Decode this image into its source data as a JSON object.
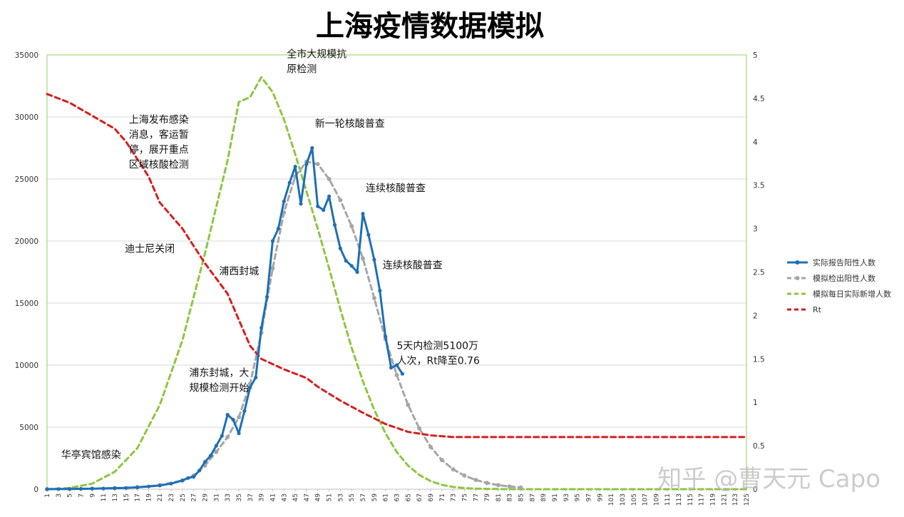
{
  "chart_data": {
    "type": "line",
    "title": "上海疫情数据模拟",
    "x": {
      "min": 1,
      "max": 125,
      "tick_step": 2
    },
    "y_left": {
      "min": 0,
      "max": 35000,
      "ticks": [
        "0",
        "5000",
        "10000",
        "15000",
        "20000",
        "25000",
        "30000",
        "35000"
      ]
    },
    "y_right": {
      "min": 0,
      "max": 5,
      "ticks": [
        "0",
        "0.5",
        "1",
        "1.5",
        "2",
        "2.5",
        "3",
        "3.5",
        "4",
        "4.5",
        "5"
      ]
    },
    "grid": "horizontal",
    "legend_position": "right",
    "series": [
      {
        "name": "实际报告阳性人数",
        "axis": "left",
        "color": "#1f6fb5",
        "style": "solid-markers",
        "points": [
          [
            1,
            0
          ],
          [
            3,
            10
          ],
          [
            5,
            20
          ],
          [
            7,
            30
          ],
          [
            9,
            40
          ],
          [
            11,
            60
          ],
          [
            13,
            80
          ],
          [
            15,
            100
          ],
          [
            17,
            150
          ],
          [
            19,
            220
          ],
          [
            21,
            300
          ],
          [
            23,
            450
          ],
          [
            25,
            700
          ],
          [
            26,
            900
          ],
          [
            27,
            1000
          ],
          [
            28,
            1500
          ],
          [
            29,
            2200
          ],
          [
            30,
            2700
          ],
          [
            31,
            3500
          ],
          [
            32,
            4300
          ],
          [
            33,
            6000
          ],
          [
            34,
            5600
          ],
          [
            35,
            4500
          ],
          [
            36,
            6300
          ],
          [
            37,
            8200
          ],
          [
            38,
            9000
          ],
          [
            39,
            13000
          ],
          [
            40,
            15500
          ],
          [
            41,
            20000
          ],
          [
            42,
            21000
          ],
          [
            43,
            23200
          ],
          [
            44,
            24700
          ],
          [
            45,
            26000
          ],
          [
            46,
            23000
          ],
          [
            47,
            26200
          ],
          [
            48,
            27500
          ],
          [
            49,
            22800
          ],
          [
            50,
            22500
          ],
          [
            51,
            23600
          ],
          [
            52,
            21300
          ],
          [
            53,
            19400
          ],
          [
            54,
            18400
          ],
          [
            55,
            18000
          ],
          [
            56,
            17500
          ],
          [
            57,
            22200
          ],
          [
            58,
            20500
          ],
          [
            59,
            18500
          ],
          [
            60,
            16000
          ],
          [
            61,
            12300
          ],
          [
            62,
            9800
          ],
          [
            63,
            10000
          ],
          [
            64,
            9300
          ]
        ]
      },
      {
        "name": "模拟检出阳性人数",
        "axis": "left",
        "color": "#a6a6a6",
        "style": "dashed-markers",
        "points": [
          [
            1,
            0
          ],
          [
            5,
            20
          ],
          [
            9,
            50
          ],
          [
            13,
            90
          ],
          [
            17,
            160
          ],
          [
            21,
            330
          ],
          [
            25,
            700
          ],
          [
            27,
            1100
          ],
          [
            29,
            1900
          ],
          [
            31,
            3000
          ],
          [
            33,
            4200
          ],
          [
            35,
            5800
          ],
          [
            37,
            8500
          ],
          [
            39,
            12600
          ],
          [
            41,
            17800
          ],
          [
            43,
            22300
          ],
          [
            45,
            25200
          ],
          [
            47,
            26400
          ],
          [
            49,
            26200
          ],
          [
            51,
            25000
          ],
          [
            53,
            23300
          ],
          [
            55,
            21200
          ],
          [
            57,
            18600
          ],
          [
            59,
            15400
          ],
          [
            61,
            12100
          ],
          [
            63,
            9200
          ],
          [
            65,
            6800
          ],
          [
            67,
            4900
          ],
          [
            69,
            3400
          ],
          [
            71,
            2350
          ],
          [
            73,
            1600
          ],
          [
            75,
            1100
          ],
          [
            77,
            750
          ],
          [
            79,
            500
          ],
          [
            81,
            330
          ],
          [
            83,
            220
          ],
          [
            85,
            130
          ]
        ]
      },
      {
        "name": "模拟每日实际新增人数",
        "axis": "left",
        "color": "#8cc63f",
        "style": "dashed",
        "points": [
          [
            1,
            0
          ],
          [
            5,
            100
          ],
          [
            9,
            450
          ],
          [
            13,
            1400
          ],
          [
            17,
            3300
          ],
          [
            21,
            6800
          ],
          [
            25,
            12000
          ],
          [
            29,
            19000
          ],
          [
            33,
            26500
          ],
          [
            35,
            31200
          ],
          [
            37,
            31600
          ],
          [
            39,
            33200
          ],
          [
            41,
            32000
          ],
          [
            43,
            29800
          ],
          [
            45,
            27000
          ],
          [
            47,
            24000
          ],
          [
            49,
            21000
          ],
          [
            51,
            17800
          ],
          [
            53,
            14500
          ],
          [
            55,
            11400
          ],
          [
            57,
            8700
          ],
          [
            59,
            6400
          ],
          [
            61,
            4500
          ],
          [
            63,
            3000
          ],
          [
            65,
            1900
          ],
          [
            67,
            1150
          ],
          [
            69,
            650
          ],
          [
            71,
            350
          ],
          [
            73,
            180
          ],
          [
            75,
            90
          ],
          [
            77,
            40
          ],
          [
            81,
            10
          ],
          [
            85,
            0
          ],
          [
            125,
            0
          ]
        ]
      },
      {
        "name": "Rt",
        "axis": "right",
        "color": "#d71e1e",
        "style": "dashed",
        "points": [
          [
            1,
            4.55
          ],
          [
            5,
            4.45
          ],
          [
            9,
            4.3
          ],
          [
            13,
            4.15
          ],
          [
            15,
            4.0
          ],
          [
            19,
            3.6
          ],
          [
            21,
            3.3
          ],
          [
            25,
            3.0
          ],
          [
            29,
            2.6
          ],
          [
            33,
            2.25
          ],
          [
            37,
            1.65
          ],
          [
            39,
            1.5
          ],
          [
            43,
            1.38
          ],
          [
            47,
            1.28
          ],
          [
            49,
            1.18
          ],
          [
            53,
            1.02
          ],
          [
            57,
            0.88
          ],
          [
            61,
            0.75
          ],
          [
            65,
            0.66
          ],
          [
            69,
            0.62
          ],
          [
            73,
            0.6
          ],
          [
            125,
            0.6
          ]
        ]
      }
    ],
    "annotations": [
      {
        "text": [
          "上海发布感染",
          "消息，客运暂",
          "停，展开重点",
          "区域核酸检测"
        ],
        "x": 15.5,
        "y": 29500
      },
      {
        "text": [
          "全市大规模抗",
          "原检测"
        ],
        "x": 43.5,
        "y": 34800
      },
      {
        "text": [
          "新一轮核酸普查"
        ],
        "x": 48.5,
        "y": 29200
      },
      {
        "text": [
          "连续核酸普查"
        ],
        "x": 57.5,
        "y": 24000
      },
      {
        "text": [
          "迪士尼关闭"
        ],
        "x": 14.8,
        "y": 19100
      },
      {
        "text": [
          "浦西封城"
        ],
        "x": 31.5,
        "y": 17300
      },
      {
        "text": [
          "连续核酸普查"
        ],
        "x": 60.5,
        "y": 17800
      },
      {
        "text": [
          "5天内检测5100万",
          "人次，Rt降至0.76"
        ],
        "x": 63,
        "y": 11300
      },
      {
        "text": [
          "浦东封城，大",
          "规模检测开始"
        ],
        "x": 26.2,
        "y": 9100
      },
      {
        "text": [
          "华亭宾馆感染"
        ],
        "x": 3.5,
        "y": 2500
      }
    ]
  },
  "watermark": "知乎 @曹天元 Capo"
}
